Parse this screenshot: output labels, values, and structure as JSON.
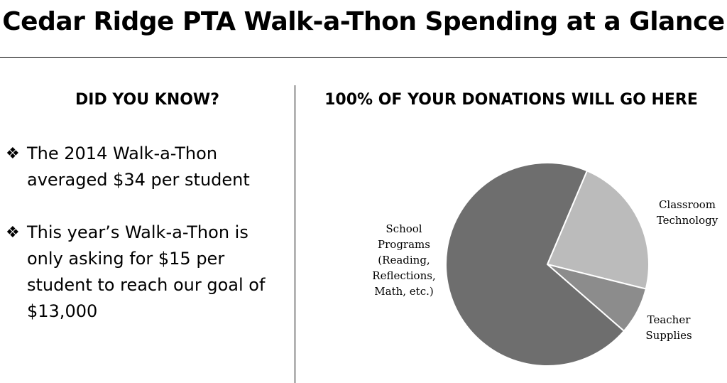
{
  "title": "Cedar Ridge PTA Walk-a-Thon Spending at a Glance",
  "left_panel": {
    "heading": "DID YOU KNOW?",
    "bullet_glyph": "❖",
    "facts": [
      {
        "text": "The 2014 Walk-a-Thon averaged $34 per student"
      },
      {
        "text": "This year’s Walk-a-Thon is only asking for $15 per student to reach our goal of $13,000"
      }
    ]
  },
  "right_panel": {
    "heading": "100% OF YOUR DONATIONS WILL GO HERE"
  },
  "chart_data": {
    "type": "pie",
    "title": "100% OF YOUR DONATIONS WILL GO HERE",
    "slices": [
      {
        "label": [
          "Classroom",
          "Technology"
        ],
        "value": 22.5,
        "color": "#bbbbbb"
      },
      {
        "label": [
          "Teacher",
          "Supplies"
        ],
        "value": 7.5,
        "color": "#8c8c8c"
      },
      {
        "label": [
          "School",
          "Programs",
          "(Reading,",
          "Reflections,",
          "Math, etc.)"
        ],
        "value": 70,
        "color": "#6e6e6e"
      }
    ],
    "legend": "none",
    "labels": "outside"
  }
}
